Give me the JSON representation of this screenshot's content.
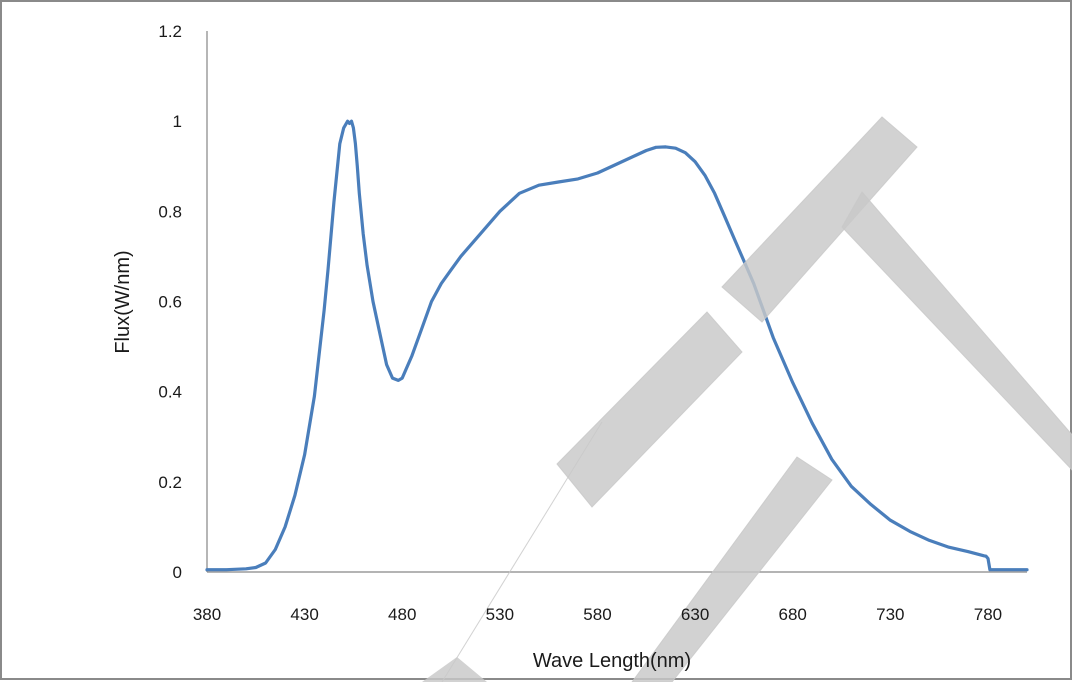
{
  "chart_data": {
    "type": "line",
    "title": "",
    "xlabel": "Wave Length(nm)",
    "ylabel": "Flux(W/nm)",
    "xlim": [
      380,
      800
    ],
    "ylim": [
      0,
      1.2
    ],
    "x_ticks": [
      "380",
      "430",
      "480",
      "530",
      "580",
      "630",
      "680",
      "730",
      "780"
    ],
    "y_ticks": [
      "0",
      "0.2",
      "0.4",
      "0.6",
      "0.8",
      "1",
      "1.2"
    ],
    "grid": false,
    "legend": "none",
    "line_color": "#4a7ebb",
    "series": [
      {
        "x": [
          380,
          390,
          400,
          405,
          410,
          415,
          420,
          425,
          430,
          435,
          440,
          442,
          445,
          448,
          450,
          452,
          453,
          454,
          455,
          456,
          457,
          458,
          460,
          462,
          465,
          468,
          470,
          472,
          475,
          478,
          480,
          482,
          485,
          490,
          495,
          500,
          505,
          510,
          520,
          530,
          540,
          550,
          560,
          570,
          580,
          590,
          600,
          605,
          610,
          615,
          620,
          625,
          630,
          635,
          640,
          645,
          650,
          655,
          660,
          670,
          680,
          690,
          700,
          710,
          720,
          730,
          740,
          750,
          760,
          770,
          778,
          779,
          780,
          781,
          790,
          800
        ],
        "y": [
          0.005,
          0.005,
          0.007,
          0.01,
          0.02,
          0.05,
          0.1,
          0.17,
          0.26,
          0.39,
          0.58,
          0.67,
          0.82,
          0.95,
          0.985,
          1.0,
          0.995,
          1.0,
          0.985,
          0.95,
          0.9,
          0.84,
          0.75,
          0.68,
          0.6,
          0.54,
          0.5,
          0.46,
          0.43,
          0.425,
          0.43,
          0.45,
          0.48,
          0.54,
          0.6,
          0.64,
          0.67,
          0.7,
          0.75,
          0.8,
          0.84,
          0.858,
          0.865,
          0.872,
          0.885,
          0.905,
          0.925,
          0.935,
          0.942,
          0.943,
          0.94,
          0.93,
          0.91,
          0.88,
          0.84,
          0.79,
          0.74,
          0.69,
          0.64,
          0.52,
          0.42,
          0.33,
          0.25,
          0.19,
          0.15,
          0.115,
          0.09,
          0.07,
          0.055,
          0.045,
          0.036,
          0.035,
          0.03,
          0.005,
          0.005,
          0.005
        ]
      }
    ]
  }
}
